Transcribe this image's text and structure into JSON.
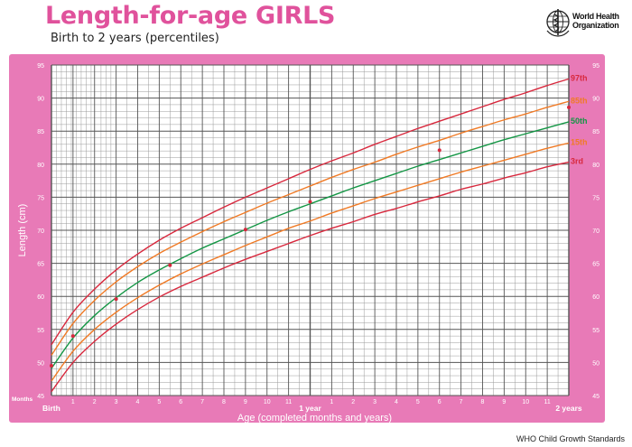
{
  "header": {
    "title": "Length-for-age GIRLS",
    "subtitle": "Birth to 2 years (percentiles)",
    "org_name": "World Health\nOrganization",
    "footer": "WHO Child Growth Standards"
  },
  "colors": {
    "frame": "#e87ab7",
    "grid": "#6e6e6e",
    "label": "#ffffff",
    "series_3rd": "#d8283d",
    "series_15th": "#f07a25",
    "series_50th": "#149645",
    "series_85th": "#f07a25",
    "series_97th": "#d8283d",
    "points": "#d8283d"
  },
  "chart_data": {
    "type": "line",
    "title": "Length-for-age GIRLS",
    "subtitle": "Birth to 2 years (percentiles)",
    "xlabel": "Age (completed months and years)",
    "ylabel": "Length (cm)",
    "x_unit_label": "Months",
    "xlim": [
      0,
      24
    ],
    "ylim": [
      45,
      95
    ],
    "y_ticks": [
      45,
      50,
      55,
      60,
      65,
      70,
      75,
      80,
      85,
      90,
      95
    ],
    "x_ticks": [
      {
        "x": 0,
        "label": "Birth"
      },
      {
        "x": 1,
        "label": "1"
      },
      {
        "x": 2,
        "label": "2"
      },
      {
        "x": 3,
        "label": "3"
      },
      {
        "x": 4,
        "label": "4"
      },
      {
        "x": 5,
        "label": "5"
      },
      {
        "x": 6,
        "label": "6"
      },
      {
        "x": 7,
        "label": "7"
      },
      {
        "x": 8,
        "label": "8"
      },
      {
        "x": 9,
        "label": "9"
      },
      {
        "x": 10,
        "label": "10"
      },
      {
        "x": 11,
        "label": "11"
      },
      {
        "x": 12,
        "label": "1 year"
      },
      {
        "x": 13,
        "label": "1"
      },
      {
        "x": 14,
        "label": "2"
      },
      {
        "x": 15,
        "label": "3"
      },
      {
        "x": 16,
        "label": "4"
      },
      {
        "x": 17,
        "label": "5"
      },
      {
        "x": 18,
        "label": "6"
      },
      {
        "x": 19,
        "label": "7"
      },
      {
        "x": 20,
        "label": "8"
      },
      {
        "x": 21,
        "label": "9"
      },
      {
        "x": 22,
        "label": "10"
      },
      {
        "x": 23,
        "label": "11"
      },
      {
        "x": 24,
        "label": "2 years"
      }
    ],
    "x": [
      0,
      1,
      2,
      3,
      4,
      5,
      6,
      7,
      8,
      9,
      10,
      11,
      12,
      13,
      14,
      15,
      16,
      17,
      18,
      19,
      20,
      21,
      22,
      23,
      24
    ],
    "series": [
      {
        "name": "97th",
        "values": [
          52.7,
          57.6,
          61.1,
          64.0,
          66.4,
          68.5,
          70.3,
          71.9,
          73.5,
          75.0,
          76.4,
          77.8,
          79.2,
          80.5,
          81.7,
          83.0,
          84.2,
          85.4,
          86.5,
          87.6,
          88.7,
          89.8,
          90.8,
          91.9,
          92.9
        ]
      },
      {
        "name": "85th",
        "values": [
          51.1,
          55.9,
          59.4,
          62.2,
          64.5,
          66.5,
          68.2,
          69.8,
          71.3,
          72.7,
          74.1,
          75.4,
          76.7,
          78.0,
          79.2,
          80.3,
          81.5,
          82.6,
          83.6,
          84.7,
          85.7,
          86.7,
          87.6,
          88.6,
          89.5
        ]
      },
      {
        "name": "50th",
        "values": [
          49.1,
          53.7,
          57.1,
          59.8,
          62.1,
          64.0,
          65.7,
          67.3,
          68.7,
          70.1,
          71.5,
          72.8,
          74.0,
          75.2,
          76.4,
          77.5,
          78.6,
          79.7,
          80.7,
          81.7,
          82.7,
          83.7,
          84.6,
          85.5,
          86.4
        ]
      },
      {
        "name": "15th",
        "values": [
          47.2,
          51.7,
          55.0,
          57.6,
          59.8,
          61.7,
          63.4,
          64.9,
          66.3,
          67.7,
          69.0,
          70.3,
          71.4,
          72.6,
          73.7,
          74.8,
          75.8,
          76.8,
          77.8,
          78.8,
          79.7,
          80.6,
          81.5,
          82.4,
          83.2
        ]
      },
      {
        "name": "3rd",
        "values": [
          45.6,
          50.0,
          53.2,
          55.8,
          58.0,
          59.9,
          61.5,
          62.9,
          64.3,
          65.6,
          66.8,
          68.0,
          69.2,
          70.3,
          71.3,
          72.4,
          73.3,
          74.3,
          75.2,
          76.2,
          77.0,
          77.9,
          78.7,
          79.6,
          80.3
        ]
      }
    ],
    "points": [
      {
        "x": 0,
        "y": 49.5
      },
      {
        "x": 1,
        "y": 54.0
      },
      {
        "x": 3,
        "y": 59.6
      },
      {
        "x": 5.5,
        "y": 64.7
      },
      {
        "x": 9,
        "y": 70.1
      },
      {
        "x": 12,
        "y": 74.3
      },
      {
        "x": 18,
        "y": 82.1
      },
      {
        "x": 24,
        "y": 88.6
      }
    ],
    "grid": true,
    "minor_grid": "weekly vertical lines in first 3 months, 1 cm horizontal lines",
    "legend": "curve end labels on right"
  }
}
